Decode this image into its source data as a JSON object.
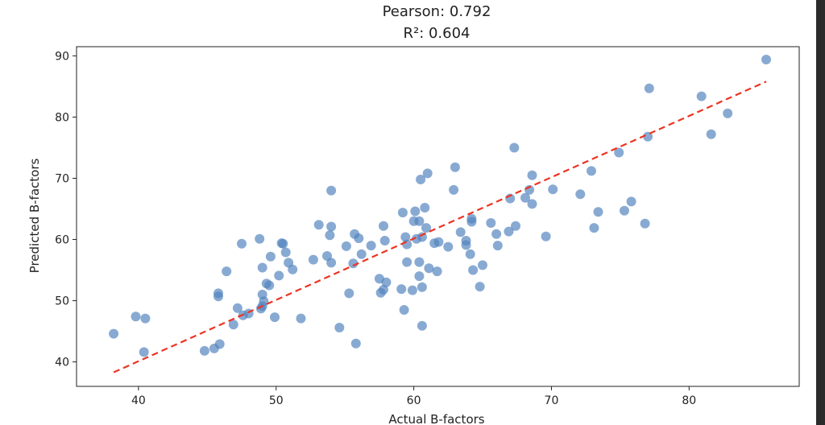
{
  "chart_data": {
    "type": "scatter",
    "title_lines": [
      "Pearson: 0.792",
      "R²: 0.604"
    ],
    "xlabel": "Actual B-factors",
    "ylabel": "Predicted B-factors",
    "xlim": [
      35.5,
      88
    ],
    "ylim": [
      36,
      91.5
    ],
    "xticks": [
      40,
      50,
      60,
      70,
      80
    ],
    "yticks": [
      40,
      50,
      60,
      70,
      80,
      90
    ],
    "point_color": "#4f81bd",
    "fit_line_color": "#ee3322",
    "fit_line": {
      "x": [
        38.2,
        85.6
      ],
      "y": [
        38.3,
        85.8
      ]
    },
    "points": [
      {
        "x": 38.2,
        "y": 44.6
      },
      {
        "x": 39.8,
        "y": 47.4
      },
      {
        "x": 40.5,
        "y": 47.1
      },
      {
        "x": 40.4,
        "y": 41.6
      },
      {
        "x": 44.8,
        "y": 41.8
      },
      {
        "x": 45.5,
        "y": 42.2
      },
      {
        "x": 45.9,
        "y": 42.9
      },
      {
        "x": 45.8,
        "y": 50.7
      },
      {
        "x": 45.8,
        "y": 51.2
      },
      {
        "x": 46.4,
        "y": 54.8
      },
      {
        "x": 46.9,
        "y": 46.1
      },
      {
        "x": 47.2,
        "y": 48.8
      },
      {
        "x": 47.6,
        "y": 47.6
      },
      {
        "x": 48.0,
        "y": 47.9
      },
      {
        "x": 47.5,
        "y": 59.3
      },
      {
        "x": 48.8,
        "y": 60.1
      },
      {
        "x": 48.9,
        "y": 48.7
      },
      {
        "x": 49.0,
        "y": 49.1
      },
      {
        "x": 49.1,
        "y": 49.9
      },
      {
        "x": 49.0,
        "y": 51.0
      },
      {
        "x": 49.0,
        "y": 55.4
      },
      {
        "x": 49.3,
        "y": 52.8
      },
      {
        "x": 49.5,
        "y": 52.5
      },
      {
        "x": 49.6,
        "y": 57.2
      },
      {
        "x": 49.9,
        "y": 47.3
      },
      {
        "x": 50.2,
        "y": 54.1
      },
      {
        "x": 50.4,
        "y": 59.4
      },
      {
        "x": 50.5,
        "y": 59.3
      },
      {
        "x": 50.7,
        "y": 57.9
      },
      {
        "x": 50.9,
        "y": 56.2
      },
      {
        "x": 51.2,
        "y": 55.1
      },
      {
        "x": 51.8,
        "y": 47.1
      },
      {
        "x": 52.7,
        "y": 56.7
      },
      {
        "x": 53.1,
        "y": 62.4
      },
      {
        "x": 53.7,
        "y": 57.3
      },
      {
        "x": 54.0,
        "y": 56.2
      },
      {
        "x": 53.9,
        "y": 60.7
      },
      {
        "x": 54.0,
        "y": 62.1
      },
      {
        "x": 54.0,
        "y": 68.0
      },
      {
        "x": 54.6,
        "y": 45.6
      },
      {
        "x": 55.1,
        "y": 58.9
      },
      {
        "x": 55.3,
        "y": 51.2
      },
      {
        "x": 55.6,
        "y": 56.1
      },
      {
        "x": 55.7,
        "y": 60.9
      },
      {
        "x": 55.8,
        "y": 43.0
      },
      {
        "x": 56.0,
        "y": 60.2
      },
      {
        "x": 56.2,
        "y": 57.6
      },
      {
        "x": 56.9,
        "y": 59.0
      },
      {
        "x": 57.5,
        "y": 53.6
      },
      {
        "x": 57.6,
        "y": 51.3
      },
      {
        "x": 57.8,
        "y": 51.8
      },
      {
        "x": 57.8,
        "y": 62.2
      },
      {
        "x": 58.0,
        "y": 53.0
      },
      {
        "x": 57.9,
        "y": 59.8
      },
      {
        "x": 59.1,
        "y": 51.9
      },
      {
        "x": 59.2,
        "y": 64.4
      },
      {
        "x": 59.3,
        "y": 48.5
      },
      {
        "x": 59.4,
        "y": 60.4
      },
      {
        "x": 59.5,
        "y": 56.3
      },
      {
        "x": 59.5,
        "y": 59.2
      },
      {
        "x": 59.9,
        "y": 51.7
      },
      {
        "x": 60.0,
        "y": 63.0
      },
      {
        "x": 60.1,
        "y": 64.6
      },
      {
        "x": 60.2,
        "y": 60.1
      },
      {
        "x": 60.4,
        "y": 56.3
      },
      {
        "x": 60.4,
        "y": 54.0
      },
      {
        "x": 60.4,
        "y": 63.0
      },
      {
        "x": 60.5,
        "y": 69.8
      },
      {
        "x": 60.6,
        "y": 45.9
      },
      {
        "x": 60.6,
        "y": 52.2
      },
      {
        "x": 60.6,
        "y": 60.4
      },
      {
        "x": 60.8,
        "y": 65.2
      },
      {
        "x": 60.9,
        "y": 61.9
      },
      {
        "x": 61.0,
        "y": 70.8
      },
      {
        "x": 61.1,
        "y": 55.3
      },
      {
        "x": 61.5,
        "y": 59.4
      },
      {
        "x": 61.7,
        "y": 54.8
      },
      {
        "x": 61.8,
        "y": 59.6
      },
      {
        "x": 62.5,
        "y": 58.8
      },
      {
        "x": 63.0,
        "y": 71.8
      },
      {
        "x": 62.9,
        "y": 68.1
      },
      {
        "x": 63.4,
        "y": 61.2
      },
      {
        "x": 63.8,
        "y": 59.8
      },
      {
        "x": 63.8,
        "y": 59.1
      },
      {
        "x": 64.1,
        "y": 57.6
      },
      {
        "x": 64.2,
        "y": 63.4
      },
      {
        "x": 64.2,
        "y": 62.9
      },
      {
        "x": 64.3,
        "y": 55.0
      },
      {
        "x": 64.8,
        "y": 52.3
      },
      {
        "x": 65.0,
        "y": 55.8
      },
      {
        "x": 65.6,
        "y": 62.7
      },
      {
        "x": 66.0,
        "y": 60.9
      },
      {
        "x": 66.1,
        "y": 59.0
      },
      {
        "x": 66.9,
        "y": 61.3
      },
      {
        "x": 67.0,
        "y": 66.7
      },
      {
        "x": 67.3,
        "y": 75.0
      },
      {
        "x": 67.4,
        "y": 62.2
      },
      {
        "x": 68.1,
        "y": 66.8
      },
      {
        "x": 68.4,
        "y": 68.1
      },
      {
        "x": 68.6,
        "y": 70.5
      },
      {
        "x": 68.6,
        "y": 65.8
      },
      {
        "x": 69.6,
        "y": 60.5
      },
      {
        "x": 70.1,
        "y": 68.2
      },
      {
        "x": 72.1,
        "y": 67.4
      },
      {
        "x": 72.9,
        "y": 71.2
      },
      {
        "x": 73.1,
        "y": 61.9
      },
      {
        "x": 73.4,
        "y": 64.5
      },
      {
        "x": 74.9,
        "y": 74.2
      },
      {
        "x": 75.3,
        "y": 64.7
      },
      {
        "x": 75.8,
        "y": 66.2
      },
      {
        "x": 76.8,
        "y": 62.6
      },
      {
        "x": 77.0,
        "y": 76.8
      },
      {
        "x": 77.1,
        "y": 84.7
      },
      {
        "x": 80.9,
        "y": 83.4
      },
      {
        "x": 81.6,
        "y": 77.2
      },
      {
        "x": 82.8,
        "y": 80.6
      },
      {
        "x": 85.6,
        "y": 89.4
      }
    ]
  }
}
